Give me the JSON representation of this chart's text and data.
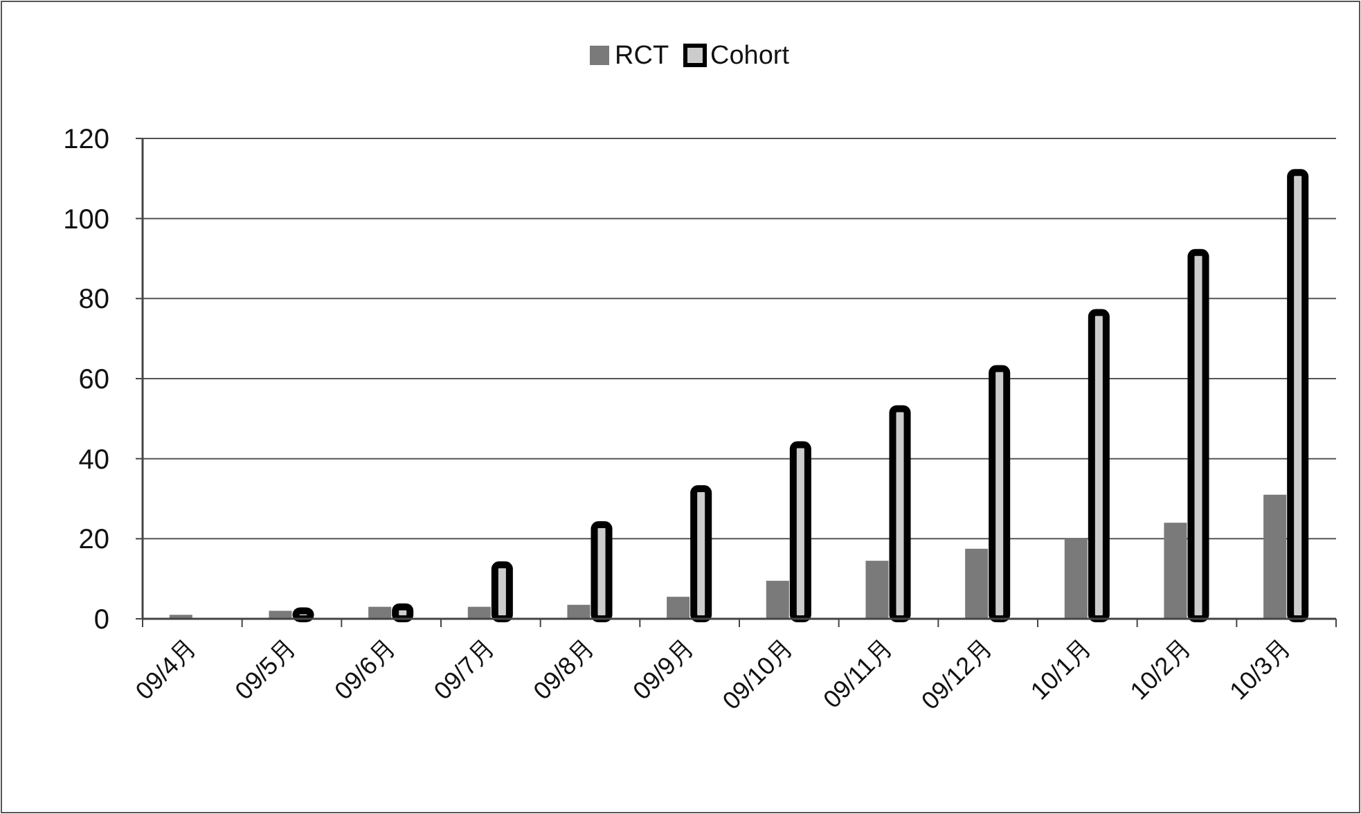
{
  "chart_data": {
    "type": "bar",
    "categories": [
      "09/4月",
      "09/5月",
      "09/6月",
      "09/7月",
      "09/8月",
      "09/9月",
      "09/10月",
      "09/11月",
      "09/12月",
      "10/1月",
      "10/2月",
      "10/3月"
    ],
    "series": [
      {
        "name": "RCT",
        "color": "#7a7a7a",
        "values": [
          1,
          2,
          3,
          3,
          3.5,
          5.5,
          9.5,
          14.5,
          17.5,
          20,
          24,
          31
        ]
      },
      {
        "name": "Cohort",
        "color": "#cccccc",
        "values": [
          0,
          2,
          3,
          13.5,
          23.5,
          32.5,
          43.5,
          52.5,
          62.5,
          76.5,
          91.5,
          111.5
        ]
      }
    ],
    "ylim": [
      0,
      120
    ],
    "yticks": [
      0,
      20,
      40,
      60,
      80,
      100,
      120
    ],
    "grid": "y",
    "legend": "top"
  }
}
